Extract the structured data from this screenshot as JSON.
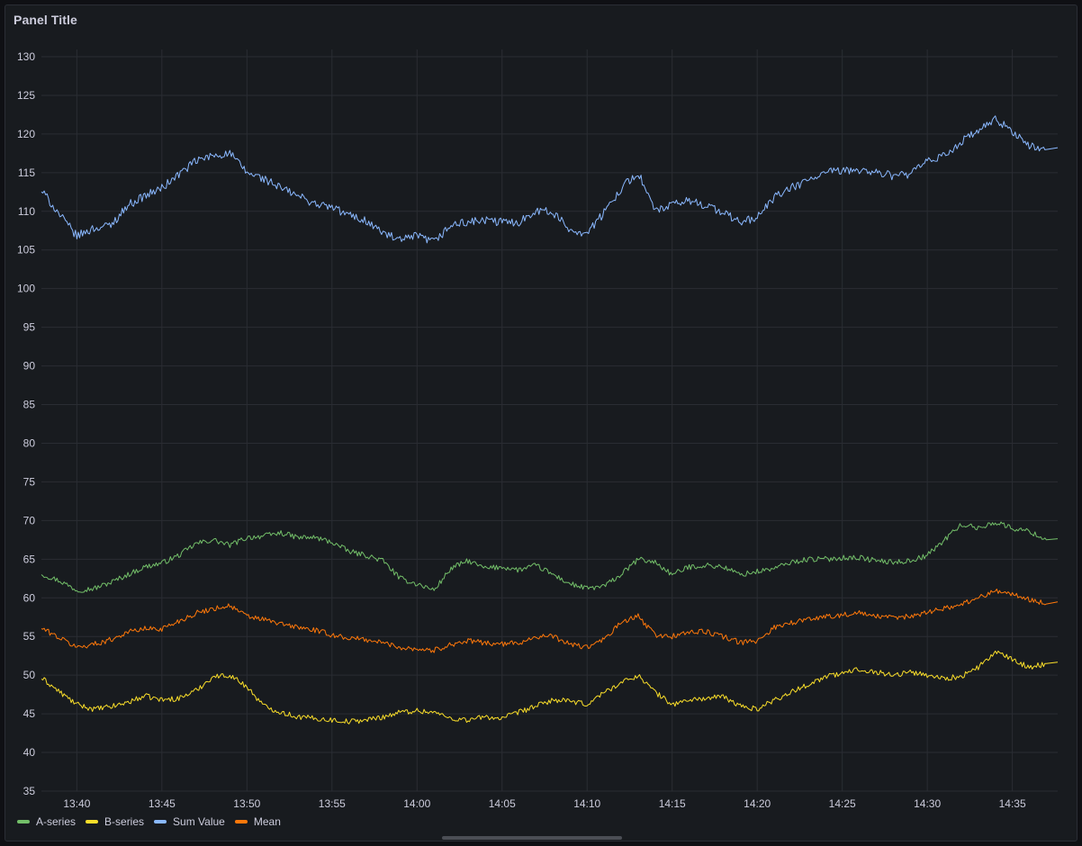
{
  "panel": {
    "title": "Panel Title"
  },
  "chart_data": {
    "type": "line",
    "title": "Panel Title",
    "xlabel": "",
    "ylabel": "",
    "ylim": [
      35,
      130
    ],
    "y_ticks": [
      35,
      40,
      45,
      50,
      55,
      60,
      65,
      70,
      75,
      80,
      85,
      90,
      95,
      100,
      105,
      110,
      115,
      120,
      125,
      130
    ],
    "x_range": [
      "13:37:55",
      "14:37:40"
    ],
    "x_ticks": [
      "13:40",
      "13:45",
      "13:50",
      "13:55",
      "14:00",
      "14:05",
      "14:10",
      "14:15",
      "14:20",
      "14:25",
      "14:30",
      "14:35"
    ],
    "grid": true,
    "legend_position": "bottom-left",
    "x": [
      "13:38",
      "13:39",
      "13:40",
      "13:41",
      "13:42",
      "13:43",
      "13:44",
      "13:45",
      "13:46",
      "13:47",
      "13:48",
      "13:49",
      "13:50",
      "13:51",
      "13:52",
      "13:53",
      "13:54",
      "13:55",
      "13:56",
      "13:57",
      "13:58",
      "13:59",
      "14:00",
      "14:01",
      "14:02",
      "14:03",
      "14:04",
      "14:05",
      "14:06",
      "14:07",
      "14:08",
      "14:09",
      "14:10",
      "14:11",
      "14:12",
      "14:13",
      "14:14",
      "14:15",
      "14:16",
      "14:17",
      "14:18",
      "14:19",
      "14:20",
      "14:21",
      "14:22",
      "14:23",
      "14:24",
      "14:25",
      "14:26",
      "14:27",
      "14:28",
      "14:29",
      "14:30",
      "14:31",
      "14:32",
      "14:33",
      "14:34",
      "14:35",
      "14:36",
      "14:37"
    ],
    "series": [
      {
        "name": "A-series",
        "color": "#73bf69",
        "values": [
          63.0,
          62.2,
          61.0,
          61.2,
          62.0,
          63.0,
          64.0,
          64.5,
          65.5,
          67.0,
          67.5,
          66.8,
          67.8,
          68.0,
          68.4,
          67.8,
          67.8,
          67.2,
          66.0,
          65.5,
          64.8,
          62.5,
          61.8,
          61.0,
          63.8,
          64.8,
          63.8,
          64.0,
          63.6,
          64.2,
          63.0,
          61.8,
          61.2,
          61.5,
          63.0,
          65.0,
          64.6,
          63.0,
          64.0,
          64.2,
          64.0,
          63.0,
          63.4,
          63.8,
          64.6,
          65.0,
          65.0,
          65.2,
          65.2,
          64.8,
          64.6,
          64.8,
          65.5,
          67.5,
          69.5,
          69.0,
          69.8,
          69.0,
          68.6,
          67.5
        ]
      },
      {
        "name": "B-series",
        "color": "#fade2a",
        "values": [
          49.5,
          47.8,
          46.2,
          45.6,
          45.9,
          46.5,
          47.3,
          46.8,
          47.0,
          48.0,
          49.8,
          50.0,
          48.5,
          46.0,
          45.2,
          44.6,
          44.4,
          44.2,
          44.0,
          44.2,
          44.6,
          45.2,
          45.4,
          45.2,
          44.4,
          44.2,
          44.6,
          44.4,
          45.2,
          46.0,
          46.8,
          46.6,
          46.2,
          47.8,
          49.0,
          50.0,
          47.8,
          46.2,
          46.8,
          47.0,
          47.2,
          46.0,
          45.6,
          46.8,
          47.8,
          48.8,
          49.8,
          50.2,
          50.8,
          50.4,
          50.0,
          50.4,
          50.0,
          49.6,
          49.8,
          51.0,
          53.0,
          52.0,
          51.0,
          51.5
        ]
      },
      {
        "name": "Sum Value",
        "color": "#8ab8ff",
        "values": [
          112.5,
          109.5,
          106.8,
          107.8,
          108.2,
          110.8,
          112.0,
          113.0,
          114.8,
          116.5,
          117.2,
          117.5,
          115.0,
          114.2,
          113.0,
          112.0,
          111.0,
          110.5,
          109.5,
          108.8,
          107.2,
          106.2,
          106.8,
          106.0,
          108.2,
          108.6,
          108.8,
          108.6,
          108.6,
          110.2,
          109.8,
          107.6,
          107.2,
          109.8,
          113.0,
          115.0,
          110.0,
          110.8,
          111.4,
          110.8,
          109.8,
          108.6,
          109.2,
          111.8,
          113.0,
          114.0,
          115.0,
          115.2,
          115.4,
          115.0,
          114.6,
          114.8,
          116.4,
          117.2,
          119.0,
          120.4,
          121.8,
          120.4,
          118.4,
          118.0
        ]
      },
      {
        "name": "Mean",
        "color": "#ff780a",
        "values": [
          56.0,
          54.8,
          53.6,
          54.0,
          54.6,
          55.6,
          56.0,
          56.0,
          57.0,
          58.0,
          58.6,
          59.0,
          57.6,
          57.2,
          56.6,
          56.2,
          55.8,
          55.2,
          54.8,
          54.6,
          54.2,
          53.6,
          53.4,
          53.2,
          54.0,
          54.4,
          54.2,
          54.0,
          54.2,
          55.0,
          55.0,
          54.0,
          53.6,
          54.6,
          56.8,
          57.6,
          55.2,
          55.0,
          55.6,
          55.6,
          55.0,
          54.2,
          54.4,
          56.2,
          56.8,
          57.2,
          57.6,
          57.8,
          58.0,
          57.6,
          57.4,
          57.6,
          58.2,
          58.6,
          59.2,
          60.0,
          61.0,
          60.4,
          59.8,
          59.2
        ]
      }
    ]
  }
}
